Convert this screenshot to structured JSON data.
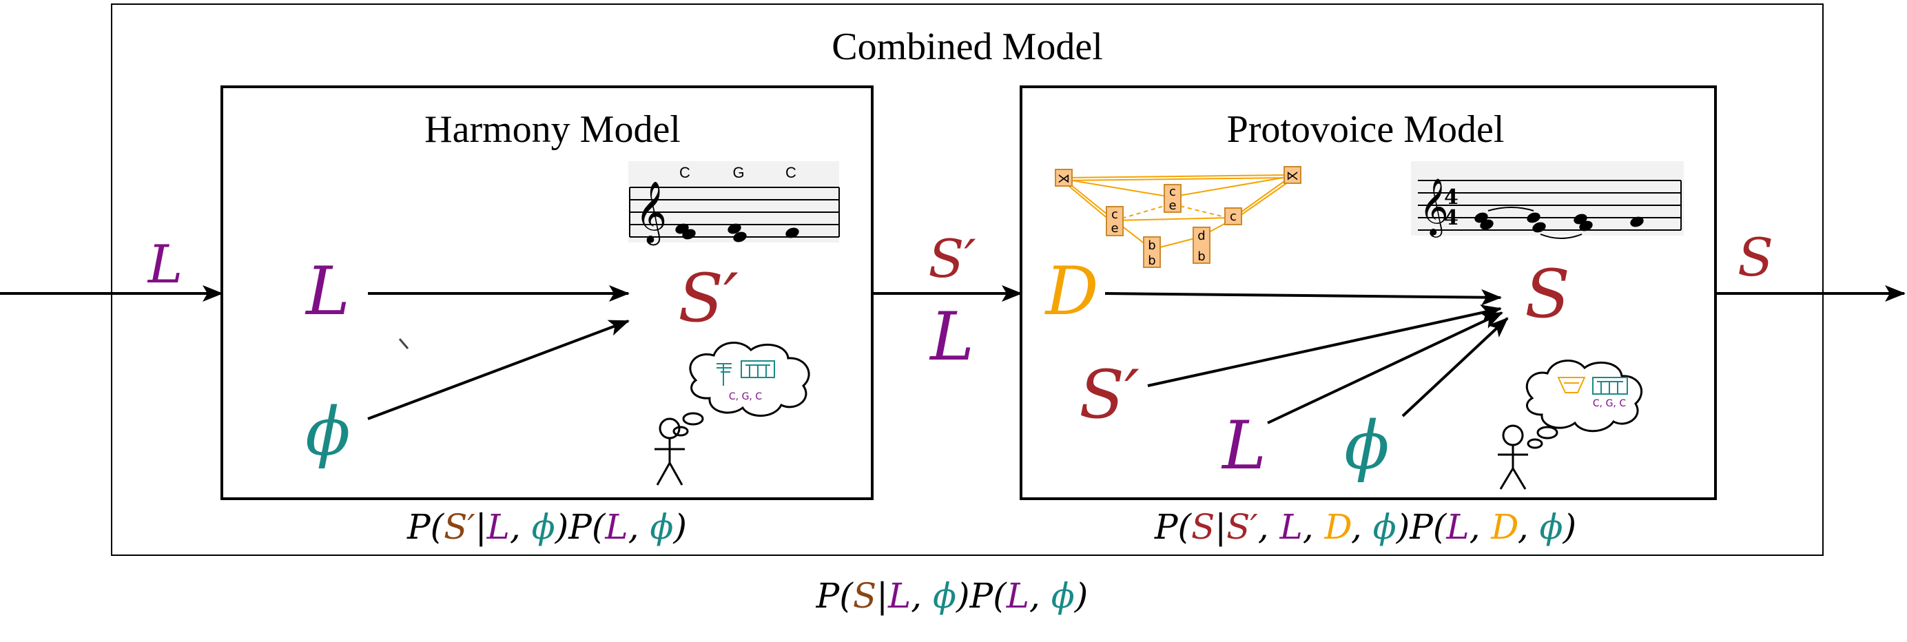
{
  "colors": {
    "purple": "#7f0f86",
    "red": "#a3262a",
    "teal": "#1a8a86",
    "orange": "#f5a300",
    "brown": "#8b4513",
    "black": "#000000"
  },
  "titles": {
    "combined": "Combined Model",
    "harmony": "Harmony Model",
    "protovoice": "Protovoice Model"
  },
  "symbols": {
    "L": "L",
    "S": "S",
    "S_prime": "S′",
    "D": "D",
    "phi": "ϕ"
  },
  "staff": {
    "chord_labels": [
      "C",
      "G",
      "C"
    ],
    "cloud_chords": "C, G, C"
  },
  "protovoice_graph": {
    "nodes": [
      "⋊",
      "⋉",
      "c",
      "e",
      "c",
      "e",
      "b",
      "d",
      "b",
      "c",
      "c"
    ]
  },
  "formulas": {
    "harmony": [
      "P(",
      "S′",
      "|",
      "L",
      ", ",
      "ϕ",
      ")P(",
      "L",
      ", ",
      "ϕ",
      ")"
    ],
    "protovoice": [
      "P(",
      "S",
      "|",
      "S′",
      ", ",
      "L",
      ", ",
      "D",
      ", ",
      "ϕ",
      ")P(",
      "L",
      ", ",
      "D",
      ", ",
      "ϕ",
      ")"
    ],
    "combined": [
      "P(",
      "S",
      "|",
      "L",
      ", ",
      "ϕ",
      ")P(",
      "L",
      ", ",
      "ϕ",
      ")"
    ]
  }
}
